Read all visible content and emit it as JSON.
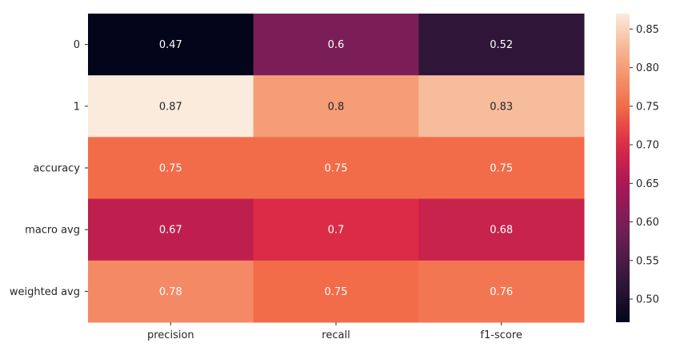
{
  "chart_data": {
    "type": "heatmap",
    "title": "",
    "xlabel": "",
    "ylabel": "",
    "x_categories": [
      "precision",
      "recall",
      "f1-score"
    ],
    "y_categories": [
      "0",
      "1",
      "accuracy",
      "macro avg",
      "weighted avg"
    ],
    "values": [
      [
        0.47,
        0.6,
        0.52
      ],
      [
        0.87,
        0.8,
        0.83
      ],
      [
        0.75,
        0.75,
        0.75
      ],
      [
        0.67,
        0.7,
        0.68
      ],
      [
        0.78,
        0.75,
        0.76
      ]
    ],
    "cell_labels": [
      [
        "0.47",
        "0.6",
        "0.52"
      ],
      [
        "0.87",
        "0.8",
        "0.83"
      ],
      [
        "0.75",
        "0.75",
        "0.75"
      ],
      [
        "0.67",
        "0.7",
        "0.68"
      ],
      [
        "0.78",
        "0.75",
        "0.76"
      ]
    ],
    "colormap": "rocket",
    "colorbar": {
      "range": [
        0.47,
        0.87
      ],
      "ticks": [
        0.5,
        0.55,
        0.6,
        0.65,
        0.7,
        0.75,
        0.8,
        0.85
      ],
      "tick_labels": [
        "0.50",
        "0.55",
        "0.60",
        "0.65",
        "0.70",
        "0.75",
        "0.80",
        "0.85"
      ]
    },
    "grid": false,
    "legend": "colorbar-right"
  }
}
